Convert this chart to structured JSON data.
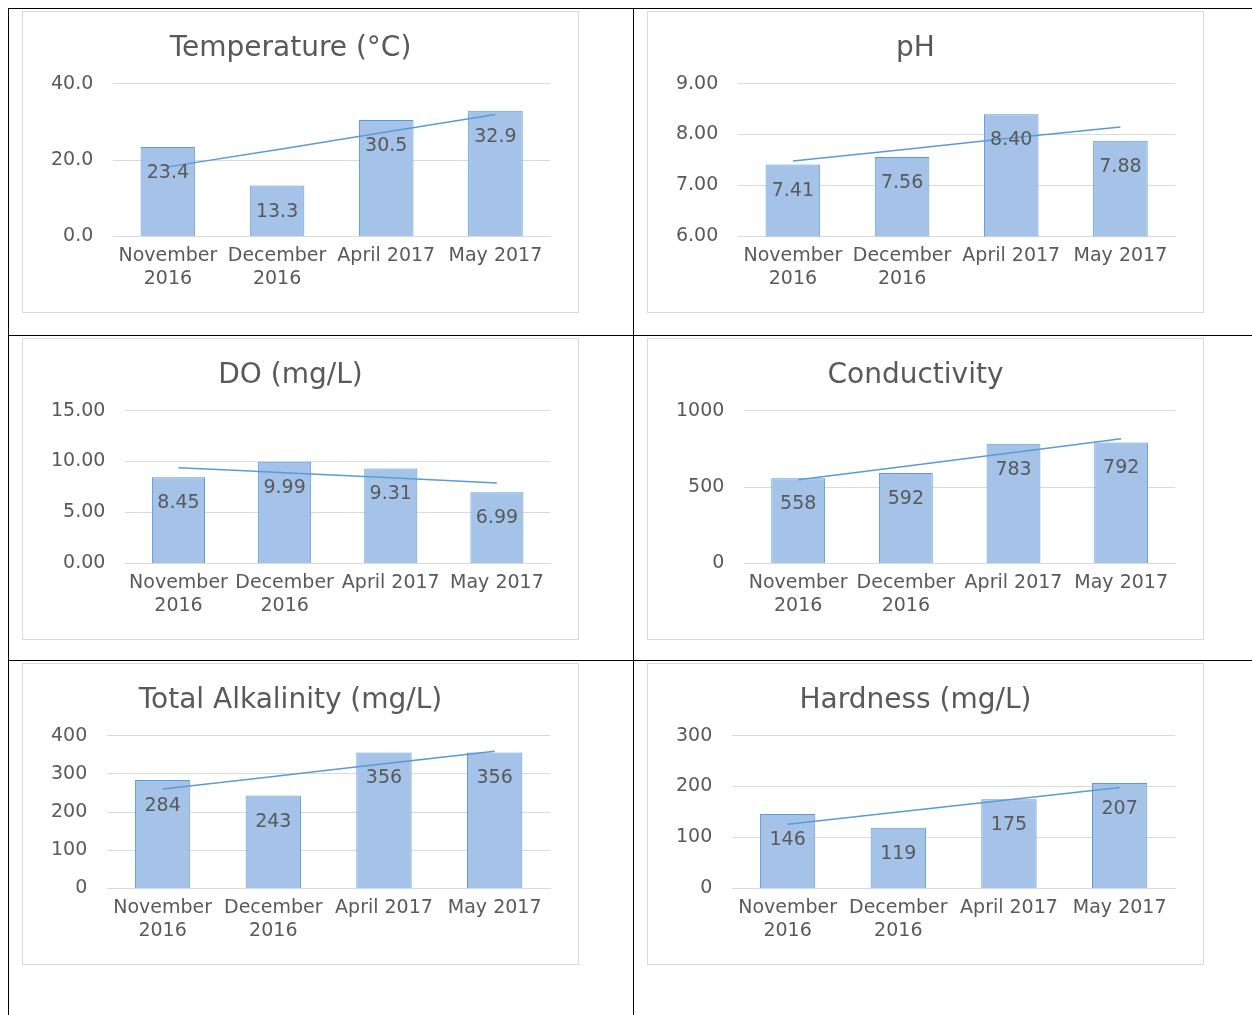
{
  "chart_data": [
    {
      "type": "bar",
      "title": "Temperature (°C)",
      "categories": [
        "November 2016",
        "December 2016",
        "April 2017",
        "May 2017"
      ],
      "series": [
        {
          "color": "#a5c3e8",
          "values": [
            23.4,
            13.3,
            30.5,
            32.9
          ],
          "value_labels": [
            "23.4",
            "13.3",
            "30.5",
            "32.9"
          ]
        },
        {
          "type": "line",
          "color": "#5b9bd5",
          "values": [
            18.2,
            22.7,
            27.3,
            31.9
          ]
        }
      ],
      "ylim": [
        0,
        40
      ],
      "yticks": [
        {
          "value": 0,
          "label": "0.0"
        },
        {
          "value": 20,
          "label": "20.0"
        },
        {
          "value": 40,
          "label": "40.0"
        }
      ],
      "grid": "y",
      "legend": false,
      "marker": "none"
    },
    {
      "type": "bar",
      "title": "pH",
      "categories": [
        "November 2016",
        "December 2016",
        "April 2017",
        "May 2017"
      ],
      "series": [
        {
          "color": "#a5c3e8",
          "values": [
            7.41,
            7.56,
            8.4,
            7.88
          ],
          "value_labels": [
            "7.41",
            "7.56",
            "8.40",
            "7.88"
          ]
        },
        {
          "type": "line",
          "color": "#5b9bd5",
          "values": [
            7.48,
            7.7,
            7.93,
            8.15
          ]
        }
      ],
      "ylim": [
        6,
        9
      ],
      "yticks": [
        {
          "value": 6,
          "label": "6.00"
        },
        {
          "value": 7,
          "label": "7.00"
        },
        {
          "value": 8,
          "label": "8.00"
        },
        {
          "value": 9,
          "label": "9.00"
        }
      ],
      "grid": "y",
      "legend": false,
      "marker": "none"
    },
    {
      "type": "bar",
      "title": "DO (mg/L)",
      "categories": [
        "November 2016",
        "December 2016",
        "April 2017",
        "May 2017"
      ],
      "series": [
        {
          "color": "#a5c3e8",
          "values": [
            8.45,
            9.99,
            9.31,
            6.99
          ],
          "value_labels": [
            "8.45",
            "9.99",
            "9.31",
            "6.99"
          ]
        },
        {
          "type": "line",
          "color": "#5b9bd5",
          "values": [
            9.4,
            8.9,
            8.4,
            7.9
          ]
        }
      ],
      "ylim": [
        0,
        15
      ],
      "yticks": [
        {
          "value": 0,
          "label": "0.00"
        },
        {
          "value": 5,
          "label": "5.00"
        },
        {
          "value": 10,
          "label": "10.00"
        },
        {
          "value": 15,
          "label": "15.00"
        }
      ],
      "grid": "y",
      "legend": false,
      "marker": "none"
    },
    {
      "type": "bar",
      "title": "Conductivity",
      "categories": [
        "November 2016",
        "December 2016",
        "April 2017",
        "May 2017"
      ],
      "series": [
        {
          "color": "#a5c3e8",
          "values": [
            558,
            592,
            783,
            792
          ],
          "value_labels": [
            "558",
            "592",
            "783",
            "792"
          ]
        },
        {
          "type": "line",
          "color": "#5b9bd5",
          "values": [
            547,
            636,
            726,
            815
          ]
        }
      ],
      "ylim": [
        0,
        1000
      ],
      "yticks": [
        0,
        500,
        1000
      ],
      "grid": "y",
      "legend": false,
      "marker": "none"
    },
    {
      "type": "bar",
      "title": "Total Alkalinity (mg/L)",
      "categories": [
        "November 2016",
        "December 2016",
        "April 2017",
        "May 2017"
      ],
      "series": [
        {
          "color": "#a5c3e8",
          "values": [
            284,
            243,
            356,
            356
          ],
          "value_labels": [
            "284",
            "243",
            "356",
            "356"
          ]
        },
        {
          "type": "line",
          "color": "#5b9bd5",
          "values": [
            260,
            293,
            326,
            359
          ]
        }
      ],
      "ylim": [
        0,
        400
      ],
      "yticks": [
        0,
        100,
        200,
        300,
        400
      ],
      "grid": "y",
      "legend": false,
      "marker": "none"
    },
    {
      "type": "bar",
      "title": "Hardness (mg/L)",
      "categories": [
        "November 2016",
        "December 2016",
        "April 2017",
        "May 2017"
      ],
      "series": [
        {
          "color": "#a5c3e8",
          "values": [
            146,
            119,
            175,
            207
          ],
          "value_labels": [
            "146",
            "119",
            "175",
            "207"
          ]
        },
        {
          "type": "line",
          "color": "#5b9bd5",
          "values": [
            126,
            150,
            174,
            198
          ]
        }
      ],
      "ylim": [
        0,
        300
      ],
      "yticks": [
        0,
        100,
        200,
        300
      ],
      "grid": "y",
      "legend": false,
      "marker": "none"
    }
  ]
}
